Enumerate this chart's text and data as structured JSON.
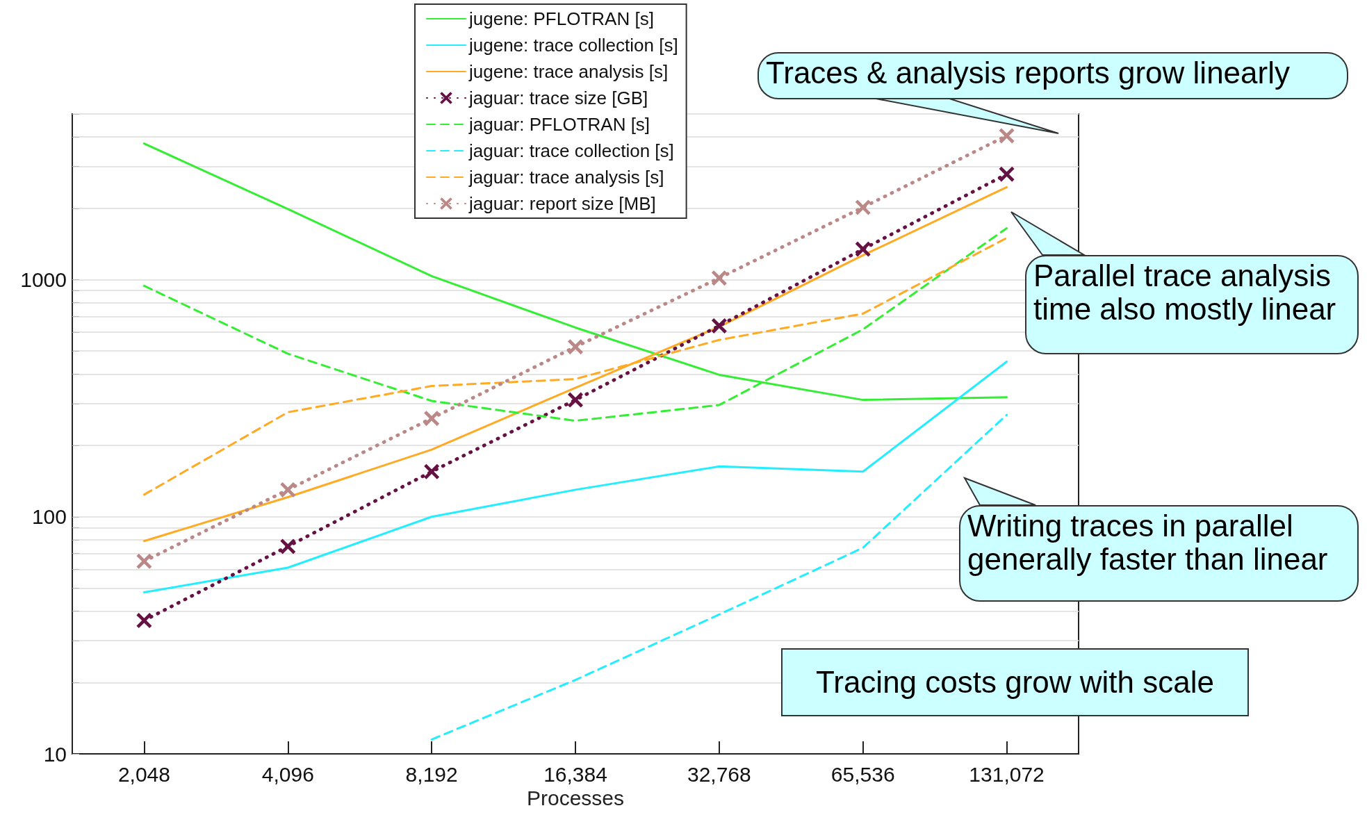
{
  "chart_data": {
    "type": "line",
    "xlabel": "Processes",
    "categories": [
      "2,048",
      "4,096",
      "8,192",
      "16,384",
      "32,768",
      "65,536",
      "131,072"
    ],
    "log": "y",
    "ylim": [
      10,
      5000
    ],
    "yticks": [
      10,
      {
        "value": 20,
        "label": null
      },
      {
        "value": 30,
        "label": null
      },
      {
        "value": 40,
        "label": null
      },
      {
        "value": 50,
        "label": null
      },
      {
        "value": 60,
        "label": null
      },
      {
        "value": 70,
        "label": null
      },
      {
        "value": 80,
        "label": null
      },
      {
        "value": 90,
        "label": null
      },
      100,
      {
        "value": 200,
        "label": null
      },
      {
        "value": 300,
        "label": null
      },
      {
        "value": 400,
        "label": null
      },
      {
        "value": 500,
        "label": null
      },
      {
        "value": 600,
        "label": null
      },
      {
        "value": 700,
        "label": null
      },
      {
        "value": 800,
        "label": null
      },
      {
        "value": 900,
        "label": null
      },
      1000,
      {
        "value": 2000,
        "label": null
      },
      {
        "value": 3000,
        "label": null
      },
      {
        "value": 4000,
        "label": null
      },
      {
        "value": 5000,
        "label": null
      }
    ],
    "grid": "y",
    "legend": "top",
    "series": [
      {
        "name": "jugene: PFLOTRAN [s]",
        "color": "#33ee33",
        "line_style": "solid",
        "marker": "none",
        "values": [
          3750,
          1985,
          1035,
          628,
          397,
          311,
          319
        ]
      },
      {
        "name": "jugene: trace collection [s]",
        "color": "#22eeff",
        "line_style": "solid",
        "marker": "none",
        "values": [
          48,
          61,
          100,
          130,
          163,
          155,
          451
        ]
      },
      {
        "name": "jugene: trace analysis [s]",
        "color": "#ffaa22",
        "line_style": "solid",
        "marker": "none",
        "values": [
          79,
          121,
          192,
          350,
          633,
          1267,
          2454
        ]
      },
      {
        "name": "jaguar: trace size [GB]",
        "color": "#661144",
        "line_style": "dotted",
        "marker": "cross",
        "values": [
          36.5,
          75,
          155,
          311,
          639,
          1345,
          2786
        ]
      },
      {
        "name": "jaguar: PFLOTRAN [s]",
        "color": "#33ee33",
        "line_style": "dashed",
        "marker": "none",
        "values": [
          942,
          487,
          308,
          254,
          296,
          617,
          1648
        ]
      },
      {
        "name": "jaguar: trace collection [s]",
        "color": "#22eeff",
        "line_style": "dashed",
        "marker": "none",
        "values": [
          null,
          null,
          11.5,
          20.5,
          38.7,
          74,
          269
        ]
      },
      {
        "name": "jaguar: trace analysis [s]",
        "color": "#ffaa22",
        "line_style": "dashed",
        "marker": "none",
        "values": [
          124,
          276,
          356,
          381,
          557,
          719,
          1500
        ]
      },
      {
        "name": "jaguar: report size [MB]",
        "color": "#bb8888",
        "line_style": "dotted",
        "marker": "cross",
        "values": [
          64.9,
          130,
          260,
          521,
          1016,
          2018,
          4045
        ]
      }
    ],
    "annotations": [
      "Traces & analysis reports grow linearly",
      "Parallel trace analysis\ntime also mostly linear",
      "Writing traces in parallel\ngenerally faster than linear",
      "Tracing costs grow with scale"
    ]
  }
}
